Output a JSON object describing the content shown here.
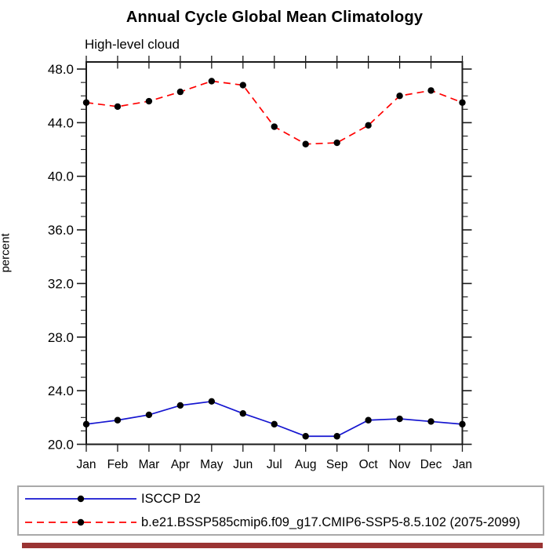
{
  "chart": {
    "title": "Annual Cycle Global Mean Climatology",
    "subtitle": "High-level cloud",
    "ylabel": "percent"
  },
  "chart_data": {
    "type": "line",
    "title": "Annual Cycle Global Mean Climatology",
    "subtitle": "High-level cloud",
    "xlabel": "",
    "ylabel": "percent",
    "categories": [
      "Jan",
      "Feb",
      "Mar",
      "Apr",
      "May",
      "Jun",
      "Jul",
      "Aug",
      "Sep",
      "Oct",
      "Nov",
      "Dec",
      "Jan"
    ],
    "ylim": [
      20.0,
      48.53
    ],
    "ytick_major_step": 4,
    "ytick_minor_step": 1,
    "ytick_labels": [
      "20.0",
      "24.0",
      "28.0",
      "32.0",
      "36.0",
      "40.0",
      "44.0",
      "48.0"
    ],
    "grid": false,
    "legend_position": "bottom",
    "series": [
      {
        "name": "ISCCP D2",
        "color": "#1515d0",
        "line_style": "solid",
        "marker": "circle",
        "marker_color": "#000000",
        "values": [
          21.5,
          21.8,
          22.2,
          22.9,
          23.2,
          22.3,
          21.5,
          20.6,
          20.6,
          21.8,
          21.9,
          21.7,
          21.5
        ]
      },
      {
        "name": "b.e21.BSSP585cmip6.f09_g17.CMIP6-SSP5-8.5.102 (2075-2099)",
        "color": "#ff0000",
        "line_style": "dashed",
        "marker": "circle",
        "marker_color": "#000000",
        "values": [
          45.5,
          45.2,
          45.6,
          46.3,
          47.1,
          46.8,
          43.7,
          42.4,
          42.5,
          43.8,
          46.0,
          46.4,
          45.5
        ]
      }
    ]
  },
  "colors": {
    "axis": "#1a1a1a",
    "text": "#000000",
    "legend_border": "#a9a9a9",
    "footer_bar": "#9a3433"
  }
}
